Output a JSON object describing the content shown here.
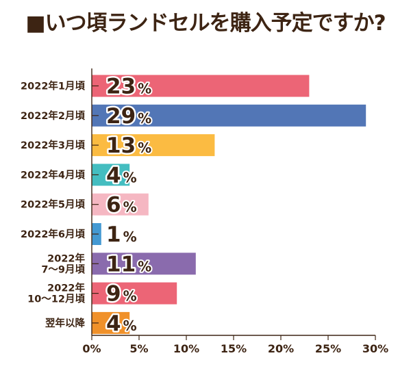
{
  "chart_data": {
    "type": "bar",
    "orientation": "horizontal",
    "title": "■いつ頃ランドセルを購入予定ですか?",
    "categories": [
      "2022年1月頃",
      "2022年2月頃",
      "2022年3月頃",
      "2022年4月頃",
      "2022年5月頃",
      "2022年6月頃",
      "2022年\n7〜9月頃",
      "2022年\n10〜12月頃",
      "翌年以降"
    ],
    "values": [
      23,
      29,
      13,
      4,
      6,
      1,
      11,
      9,
      4
    ],
    "value_unit": "%",
    "colors": [
      "#ec6576",
      "#5276b6",
      "#fbbb42",
      "#44bdc0",
      "#f5b7c2",
      "#4499d2",
      "#8a6bad",
      "#ec6576",
      "#f0912a"
    ],
    "xlim": [
      0,
      30
    ],
    "x_ticks": [
      "0%",
      "5%",
      "10%",
      "15%",
      "20%",
      "25%",
      "30%"
    ],
    "grid": false,
    "legend": "none"
  }
}
